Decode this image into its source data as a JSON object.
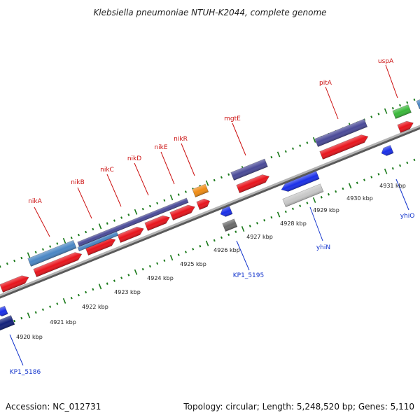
{
  "title": "Klebsiella pneumoniae NTUH-K2044, complete genome",
  "footer": {
    "accession": "Accession: NC_012731",
    "summary": "Topology: circular; Length: 5,248,520 bp; Genes: 5,110"
  },
  "colors": {
    "forward_gene": "#e8141c",
    "reverse_gene": "#1a2fe8",
    "dark_navy": "#12207a",
    "slate_blue": "#4a4a98",
    "steel_blue": "#4a86c4",
    "orange": "#f08c14",
    "green": "#3ab83a",
    "gray": "#6a6a6a",
    "light_gray": "#c8c8c8",
    "tick_green": "#1a7a1a",
    "backbone": "#8a8a8a",
    "top_label": "#cc1111",
    "bottom_label": "#1133cc"
  },
  "ticks": [
    "4920 kbp",
    "4921 kbp",
    "4922 kbp",
    "4923 kbp",
    "4924 kbp",
    "4925 kbp",
    "4926 kbp",
    "4927 kbp",
    "4928 kbp",
    "4929 kbp",
    "4930 kbp",
    "4931 kbp"
  ],
  "top_labels": [
    "nikA",
    "nikB",
    "nikC",
    "nikD",
    "nikE",
    "nikR",
    "mgtE",
    "pitA",
    "uspA"
  ],
  "bottom_labels": [
    "KP1_5186",
    "KP1_5195",
    "yhiN",
    "yhiO"
  ],
  "top_genes": [
    {
      "id": "top-gene-1",
      "color": "forward_gene"
    },
    {
      "id": "top-gene-2",
      "color": "forward_gene"
    },
    {
      "id": "top-gene-3",
      "color": "forward_gene"
    },
    {
      "id": "top-gene-4",
      "color": "forward_gene"
    },
    {
      "id": "top-gene-5",
      "color": "forward_gene"
    },
    {
      "id": "top-gene-6",
      "color": "forward_gene"
    },
    {
      "id": "top-gene-7",
      "color": "forward_gene"
    },
    {
      "id": "top-gene-8",
      "color": "forward_gene"
    },
    {
      "id": "top-gene-9",
      "color": "forward_gene"
    },
    {
      "id": "top-gene-10",
      "color": "orange"
    },
    {
      "id": "top-gene-11",
      "color": "slate_blue"
    },
    {
      "id": "top-gene-12",
      "color": "slate_blue"
    },
    {
      "id": "top-gene-13",
      "color": "green"
    },
    {
      "id": "top-gene-14",
      "color": "steel_blue"
    },
    {
      "id": "top-gene-15",
      "color": "slate_blue"
    }
  ],
  "bottom_genes": [
    {
      "id": "bottom-gene-1",
      "color": "reverse_gene"
    },
    {
      "id": "bottom-gene-2",
      "color": "dark_navy"
    },
    {
      "id": "bottom-gene-3",
      "color": "reverse_gene"
    },
    {
      "id": "bottom-gene-4",
      "color": "gray"
    },
    {
      "id": "bottom-gene-5",
      "color": "reverse_gene"
    },
    {
      "id": "bottom-gene-6",
      "color": "light_gray"
    },
    {
      "id": "bottom-gene-7",
      "color": "reverse_gene"
    }
  ]
}
